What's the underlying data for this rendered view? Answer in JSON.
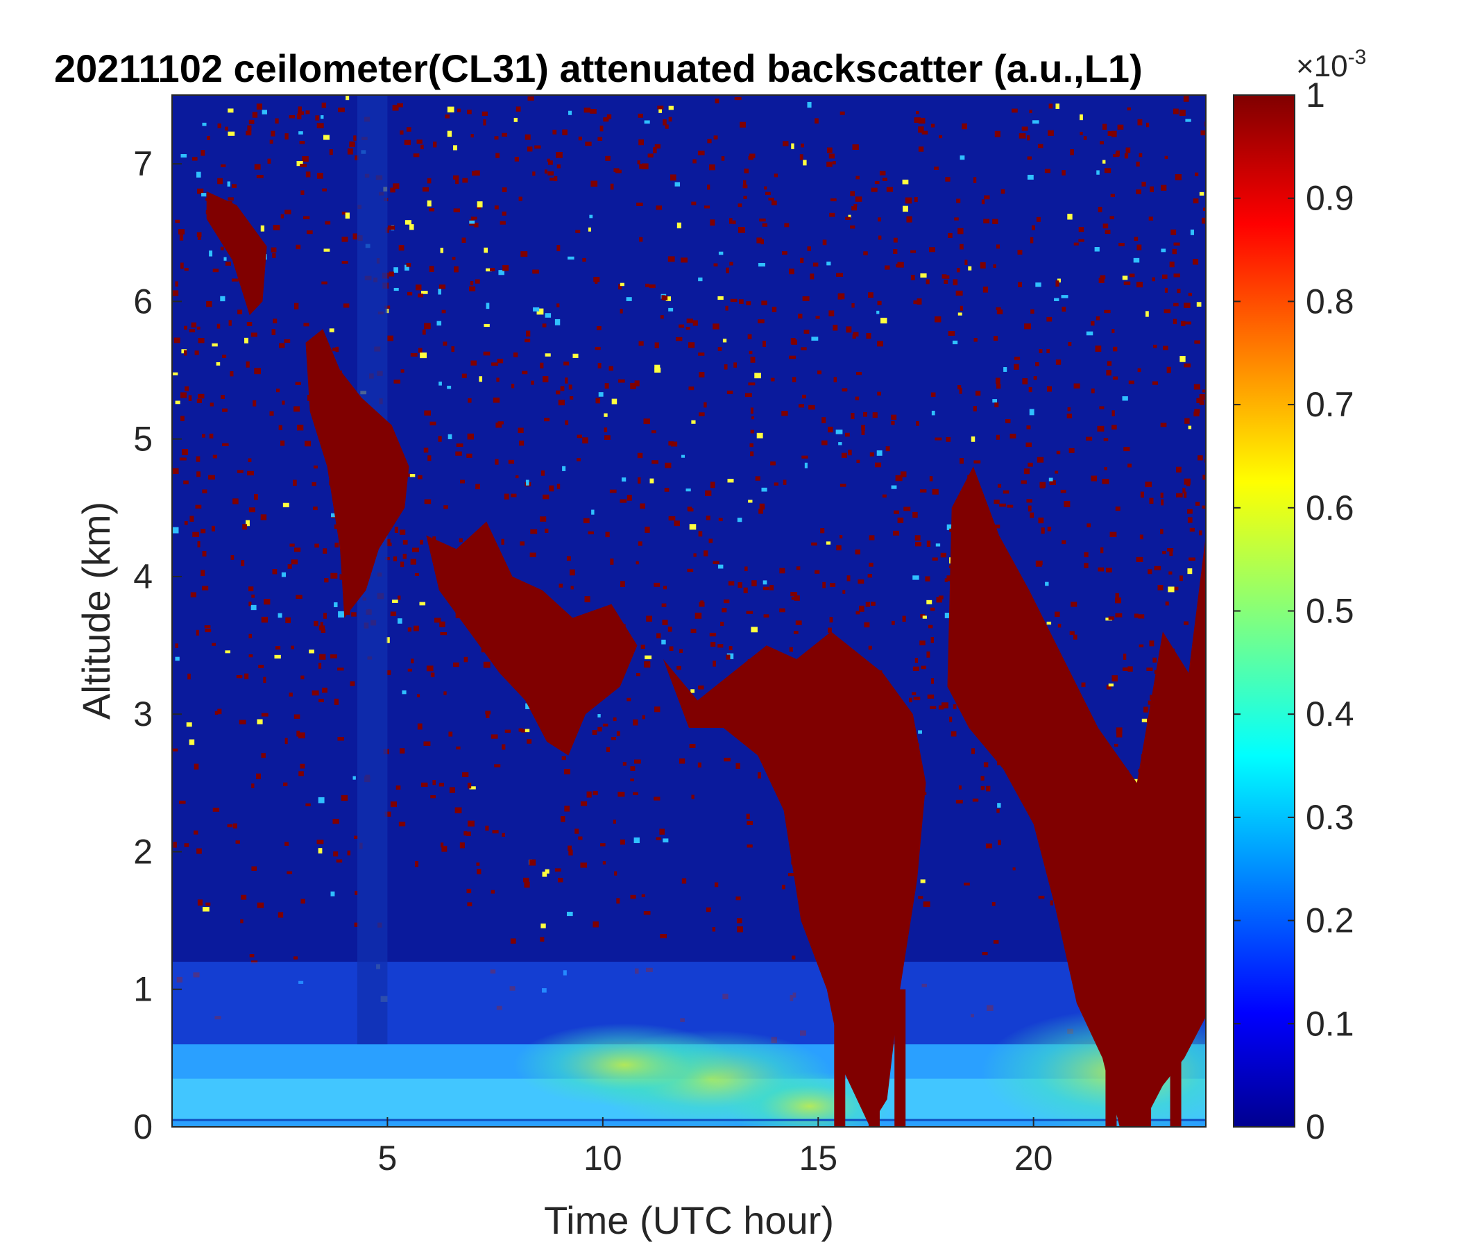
{
  "chart_data": {
    "type": "heatmap",
    "title": "20211102 ceilometer(CL31) attenuated backscatter (a.u.,L1)",
    "xlabel": "Time (UTC hour)",
    "ylabel": "Altitude (km)",
    "xlim": [
      0,
      24
    ],
    "ylim": [
      0,
      7.5
    ],
    "xticks": [
      5,
      10,
      15,
      20
    ],
    "yticks": [
      0,
      1,
      2,
      3,
      4,
      5,
      6,
      7
    ],
    "colorbar": {
      "colormap": "jet",
      "range": [
        0,
        0.001
      ],
      "ticks": [
        "0",
        "0.1",
        "0.2",
        "0.3",
        "0.4",
        "0.5",
        "0.6",
        "0.7",
        "0.8",
        "0.9",
        "1"
      ],
      "exponent_base": "×10",
      "exponent_power": "-3"
    },
    "features": [
      {
        "name": "near-surface aerosol layer",
        "time_hours": [
          0,
          24
        ],
        "altitude_km": [
          0,
          0.6
        ]
      },
      {
        "name": "high cloud band",
        "time_hours": [
          3,
          6
        ],
        "altitude_km": [
          3.7,
          6.0
        ]
      },
      {
        "name": "descending cloud layer",
        "time_hours": [
          6,
          14
        ],
        "altitude_km": [
          2.8,
          4.3
        ]
      },
      {
        "name": "precipitating cloud",
        "time_hours": [
          14.5,
          17.5
        ],
        "altitude_km": [
          0,
          3.5
        ]
      },
      {
        "name": "precipitating cloud",
        "time_hours": [
          18,
          24
        ],
        "altitude_km": [
          0,
          4.5
        ]
      }
    ]
  },
  "colors": {
    "jet_low": "#00008f",
    "jet_high": "#800000",
    "axis": "#262626"
  }
}
